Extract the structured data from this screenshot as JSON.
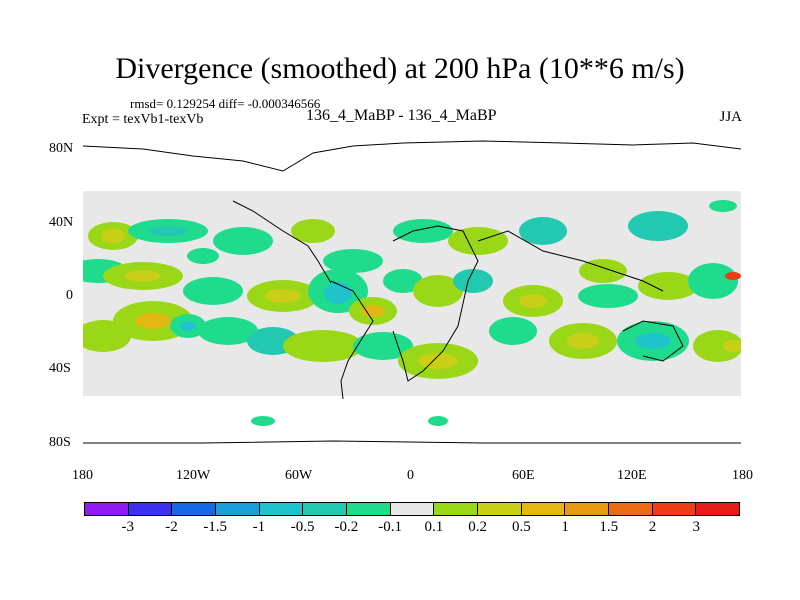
{
  "title": "Divergence (smoothed) at 200 hPa (10**6 m/s)",
  "stats": "rmsd= 0.129254 diff= -0.000346566",
  "expt": "Expt = texVb1-texVb",
  "runs": "136_4_MaBP - 136_4_MaBP",
  "season": "JJA",
  "lat_labels": [
    "80N",
    "40N",
    "0",
    "40S",
    "80S"
  ],
  "lon_labels": [
    "180",
    "120W",
    "60W",
    "0",
    "60E",
    "120E",
    "180"
  ],
  "colorbar": {
    "colors": [
      "#8f1cf1",
      "#3d30ee",
      "#1668e6",
      "#199fdc",
      "#1fc3cc",
      "#22c8b0",
      "#1fdc8c",
      "#e8e8e8",
      "#9ad717",
      "#c9cf16",
      "#e3b812",
      "#e89912",
      "#ec6a14",
      "#ee3d16",
      "#e81b1b"
    ],
    "labels": [
      "-3",
      "-2",
      "-1.5",
      "-1",
      "-0.5",
      "-0.2",
      "-0.1",
      "0.1",
      "0.2",
      "0.5",
      "1",
      "1.5",
      "2",
      "3"
    ]
  }
}
